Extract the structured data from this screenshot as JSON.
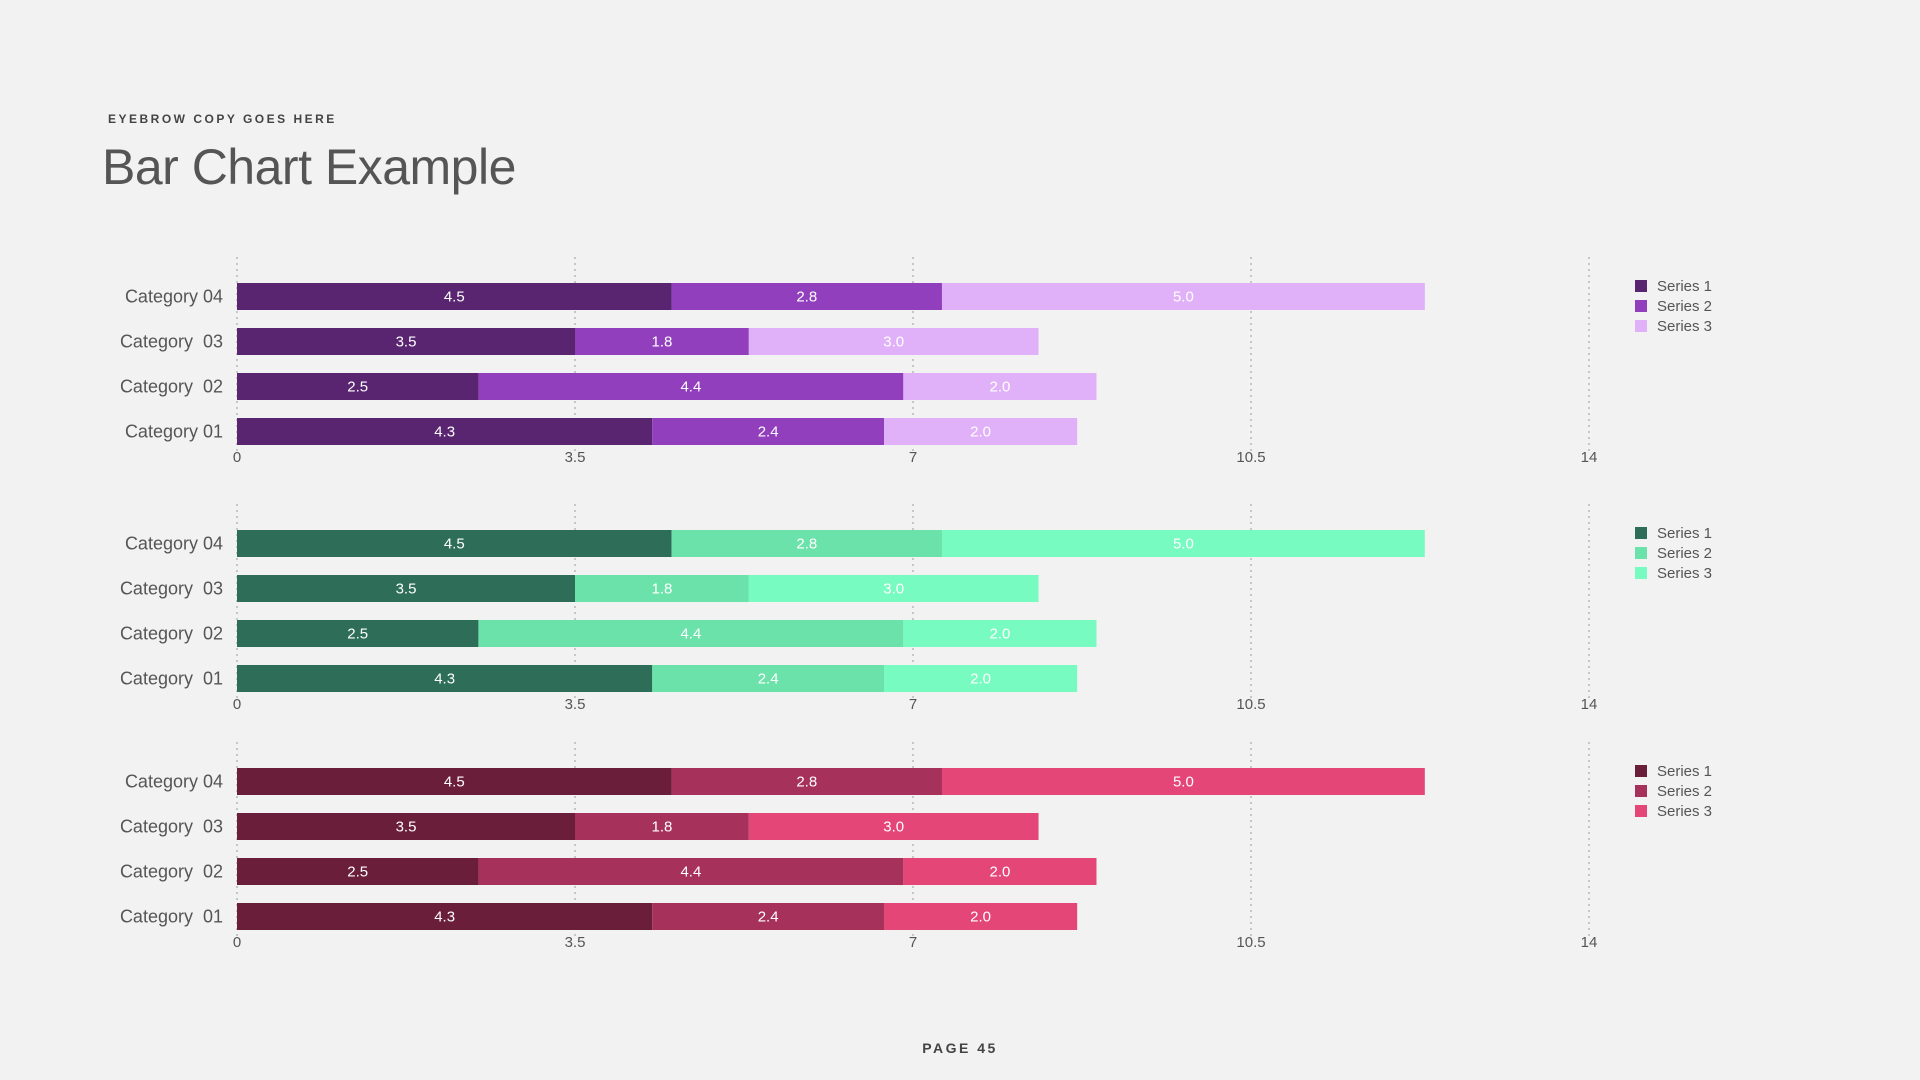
{
  "header": {
    "eyebrow": "EYEBROW COPY GOES HERE",
    "title": "Bar Chart Example"
  },
  "footer": {
    "page_label": "PAGE 45"
  },
  "chart_data": [
    {
      "type": "bar",
      "orientation": "horizontal",
      "stacked": true,
      "categories": [
        "Category 01",
        "Category  02",
        "Category  03",
        "Category 04"
      ],
      "series": [
        {
          "name": "Series 1",
          "color": "#5a2570",
          "values": [
            4.3,
            2.5,
            3.5,
            4.5
          ]
        },
        {
          "name": "Series 2",
          "color": "#913fbc",
          "values": [
            2.4,
            4.4,
            1.8,
            2.8
          ]
        },
        {
          "name": "Series 3",
          "color": "#e0b1f8",
          "values": [
            2.0,
            2.0,
            3.0,
            5.0
          ]
        }
      ],
      "xticks": [
        "0",
        "3.5",
        "7",
        "10.5",
        "14"
      ],
      "xlim": [
        0,
        14
      ],
      "grid": "vertical-dotted",
      "legend": "right"
    },
    {
      "type": "bar",
      "orientation": "horizontal",
      "stacked": true,
      "categories": [
        "Category  01",
        "Category  02",
        "Category  03",
        "Category 04"
      ],
      "series": [
        {
          "name": "Series 1",
          "color": "#2e6e58",
          "values": [
            4.3,
            2.5,
            3.5,
            4.5
          ]
        },
        {
          "name": "Series 2",
          "color": "#6be2aa",
          "values": [
            2.4,
            4.4,
            1.8,
            2.8
          ]
        },
        {
          "name": "Series 3",
          "color": "#78fbc0",
          "values": [
            2.0,
            2.0,
            3.0,
            5.0
          ]
        }
      ],
      "xticks": [
        "0",
        "3.5",
        "7",
        "10.5",
        "14"
      ],
      "xlim": [
        0,
        14
      ],
      "grid": "vertical-dotted",
      "legend": "right"
    },
    {
      "type": "bar",
      "orientation": "horizontal",
      "stacked": true,
      "categories": [
        "Category  01",
        "Category  02",
        "Category  03",
        "Category 04"
      ],
      "series": [
        {
          "name": "Series 1",
          "color": "#6a1e3a",
          "values": [
            4.3,
            2.5,
            3.5,
            4.5
          ]
        },
        {
          "name": "Series 2",
          "color": "#a6315a",
          "values": [
            2.4,
            4.4,
            1.8,
            2.8
          ]
        },
        {
          "name": "Series 3",
          "color": "#e34677",
          "values": [
            2.0,
            2.0,
            3.0,
            5.0
          ]
        }
      ],
      "xticks": [
        "0",
        "3.5",
        "7",
        "10.5",
        "14"
      ],
      "xlim": [
        0,
        14
      ],
      "grid": "vertical-dotted",
      "legend": "right"
    }
  ]
}
